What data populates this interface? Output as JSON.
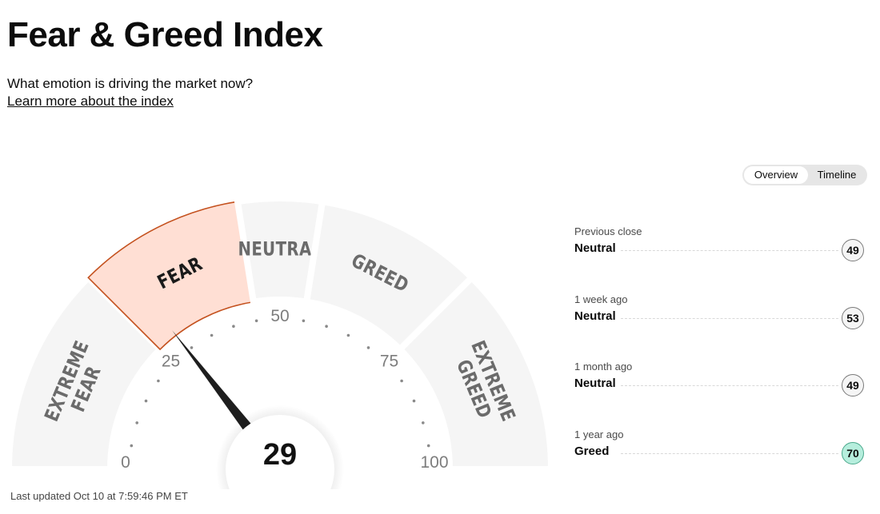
{
  "header": {
    "title": "Fear & Greed Index",
    "subtitle": "What emotion is driving the market now?",
    "learn_link": "Learn more about the index"
  },
  "view_toggle": {
    "options": [
      "Overview",
      "Timeline"
    ],
    "selected": "Overview"
  },
  "gauge": {
    "value": 29,
    "value_label": "29",
    "active_zone": "FEAR",
    "zones": [
      {
        "label_lines": [
          "EXTREME",
          "FEAR"
        ],
        "from": 0,
        "to": 25
      },
      {
        "label_lines": [
          "FEAR"
        ],
        "from": 25,
        "to": 45
      },
      {
        "label_lines": [
          "NEUTRAL"
        ],
        "from": 45,
        "to": 55
      },
      {
        "label_lines": [
          "GREED"
        ],
        "from": 55,
        "to": 75
      },
      {
        "label_lines": [
          "EXTREME",
          "GREED"
        ],
        "from": 75,
        "to": 100
      }
    ],
    "scale_labels": [
      "0",
      "25",
      "50",
      "75",
      "100"
    ],
    "colors": {
      "zone_fill": "#f5f5f5",
      "active_fill": "#ffdfd4",
      "active_stroke": "#c4511e",
      "zone_text": "#6b6b6b",
      "active_text": "#1a1a1a",
      "needle": "#1e1e1e"
    }
  },
  "history": [
    {
      "period": "Previous close",
      "rating": "Neutral",
      "value": "49"
    },
    {
      "period": "1 week ago",
      "rating": "Neutral",
      "value": "53"
    },
    {
      "period": "1 month ago",
      "rating": "Neutral",
      "value": "49"
    },
    {
      "period": "1 year ago",
      "rating": "Greed",
      "value": "70"
    }
  ],
  "last_updated": "Last updated Oct 10 at 7:59:46 PM ET"
}
